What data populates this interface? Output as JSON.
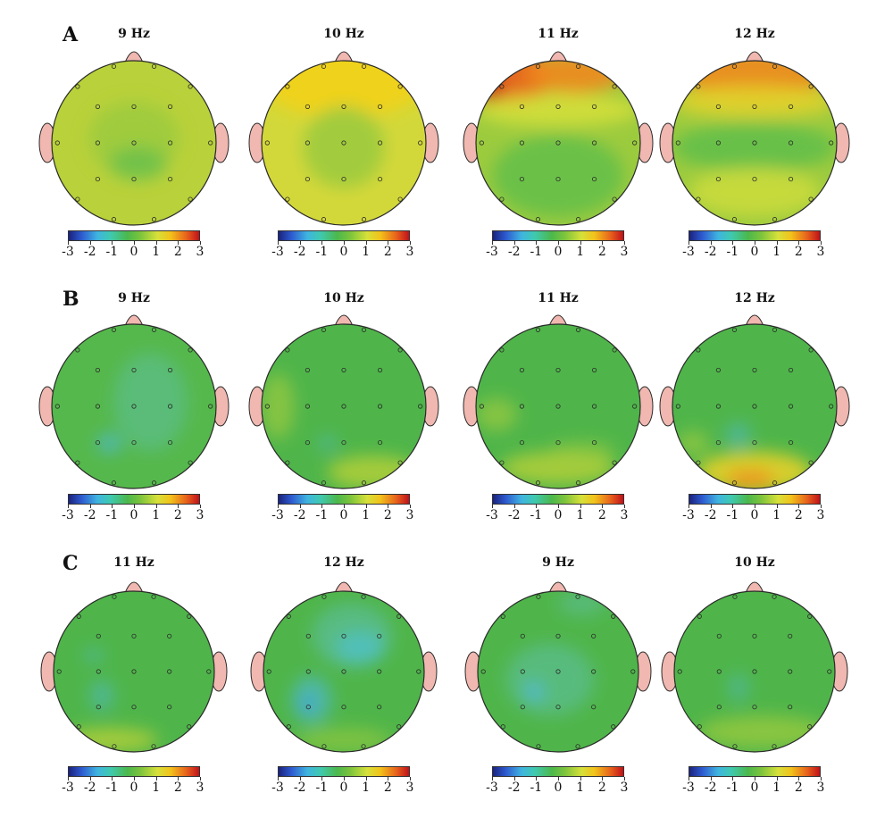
{
  "rows": [
    {
      "letter": "A",
      "maps": [
        {
          "freq": "9 Hz",
          "pattern": "A9"
        },
        {
          "freq": "10 Hz",
          "pattern": "A10"
        },
        {
          "freq": "11 Hz",
          "pattern": "A11"
        },
        {
          "freq": "12 Hz",
          "pattern": "A12"
        }
      ]
    },
    {
      "letter": "B",
      "maps": [
        {
          "freq": "9 Hz",
          "pattern": "B9"
        },
        {
          "freq": "10 Hz",
          "pattern": "B10"
        },
        {
          "freq": "11 Hz",
          "pattern": "B11"
        },
        {
          "freq": "12 Hz",
          "pattern": "B12"
        }
      ]
    },
    {
      "letter": "C",
      "maps": [
        {
          "freq": "11 Hz",
          "pattern": "C11"
        },
        {
          "freq": "12 Hz",
          "pattern": "C12"
        },
        {
          "freq": "9 Hz",
          "pattern": "C9"
        },
        {
          "freq": "10 Hz",
          "pattern": "C10"
        }
      ]
    }
  ],
  "colorbar": {
    "labels": [
      "-3",
      "-2",
      "-1",
      "0",
      "1",
      "2",
      "3"
    ],
    "colors": [
      "#1a237e",
      "#2e5bd0",
      "#3fb4e0",
      "#4cb84c",
      "#d7e03a",
      "#e8641c",
      "#c0111a"
    ]
  },
  "colors": {
    "head_outline": "#2a2a2a",
    "nose_ear": "#f0b8b0",
    "electrode": "#2a2a2a"
  }
}
